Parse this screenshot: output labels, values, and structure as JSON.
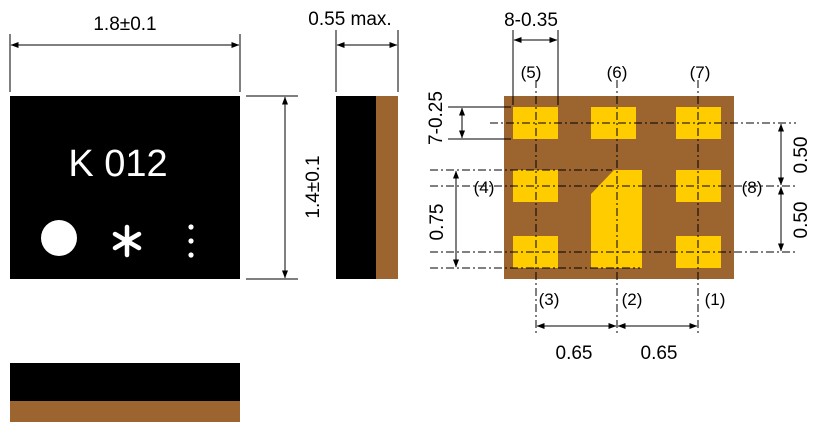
{
  "colors": {
    "package_body": "#000000",
    "substrate": "#9c6530",
    "pad": "#ffcc00",
    "marking": "#ffffff",
    "line": "#000000"
  },
  "top_view": {
    "marking_text": "K 012",
    "symbols": [
      "filled-circle",
      "asterisk",
      "vertical-dots"
    ],
    "width_label": "1.8±0.1",
    "height_label": "1.4±0.1"
  },
  "side_view": {
    "thickness_label": "0.55 max."
  },
  "bottom_view": {
    "pad_width_label": "8-0.35",
    "pad_height_label": "7-0.25",
    "pin_labels": {
      "p1": "(1)",
      "p2": "(2)",
      "p3": "(3)",
      "p4": "(4)",
      "p5": "(5)",
      "p6": "(6)",
      "p7": "(7)",
      "p8": "(8)"
    },
    "pitch_x_left_label": "0.65",
    "pitch_x_right_label": "0.65",
    "pitch_y_top_label": "0.50",
    "pitch_y_bottom_label": "0.50",
    "span_label": "0.75"
  }
}
